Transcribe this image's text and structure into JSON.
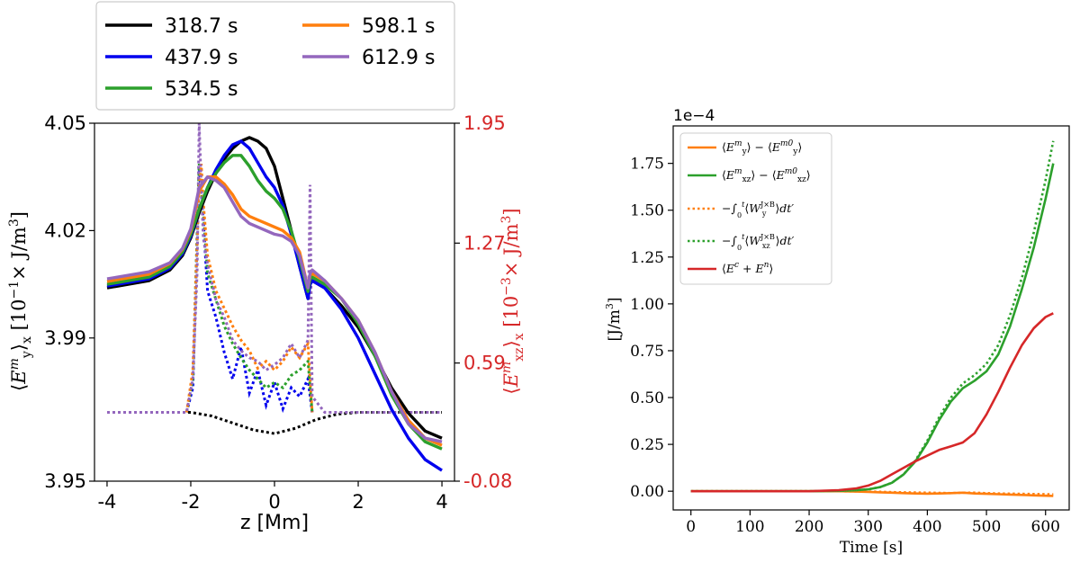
{
  "chart_data": [
    {
      "type": "line",
      "xlabel": "z [Mm]",
      "ylabel": "⟨E_y^m⟩_x [10^-1 × J/m^3]",
      "ylabel_right": "⟨E_xz^m⟩_x [10^-3 × J/m^3]",
      "xlim": [
        -4.3,
        4.3
      ],
      "ylim": [
        3.95,
        4.05
      ],
      "ylim_right": [
        -0.08,
        1.95
      ],
      "xticks": [
        "-4",
        "-2",
        "0",
        "2",
        "4"
      ],
      "yticks": [
        "3.95",
        "3.99",
        "4.02",
        "4.05"
      ],
      "yticks_right": [
        "-0.08",
        "0.59",
        "1.27",
        "1.95"
      ],
      "right_axis_color": "#d62728",
      "legend_position": "above",
      "grid": false,
      "series": [
        {
          "name": "318.7 s",
          "color": "#000000",
          "solid_x": [
            -4,
            -3,
            -2.5,
            -2.2,
            -2,
            -1.8,
            -1.6,
            -1.4,
            -1.2,
            -1.0,
            -0.8,
            -0.6,
            -0.4,
            -0.2,
            0,
            0.2,
            0.4,
            0.6,
            0.8,
            0.85,
            0.9,
            1.2,
            1.6,
            2,
            2.4,
            2.8,
            3.2,
            3.6,
            4
          ],
          "solid_y": [
            4.004,
            4.006,
            4.009,
            4.013,
            4.018,
            4.025,
            4.031,
            4.036,
            4.04,
            4.043,
            4.045,
            4.046,
            4.045,
            4.043,
            4.038,
            4.029,
            4.02,
            4.01,
            4.001,
            4.005,
            4.006,
            4.004,
            3.999,
            3.993,
            3.985,
            3.976,
            3.969,
            3.964,
            3.962
          ],
          "dotted_x": [
            -4,
            -3,
            -2,
            -1.5,
            -1,
            -0.5,
            0,
            0.5,
            1,
            1.5,
            2,
            3,
            4
          ],
          "dotted_y": [
            0.31,
            0.31,
            0.31,
            0.29,
            0.25,
            0.21,
            0.19,
            0.22,
            0.27,
            0.3,
            0.31,
            0.31,
            0.31
          ]
        },
        {
          "name": "437.9 s",
          "color": "#0000ee",
          "solid_x": [
            -4,
            -3,
            -2.5,
            -2.2,
            -2,
            -1.8,
            -1.6,
            -1.4,
            -1.2,
            -1.0,
            -0.8,
            -0.6,
            -0.4,
            -0.2,
            0,
            0.2,
            0.4,
            0.6,
            0.8,
            0.85,
            0.9,
            1.2,
            1.6,
            2,
            2.4,
            2.8,
            3.2,
            3.6,
            4
          ],
          "solid_y": [
            4.0045,
            4.0065,
            4.0095,
            4.0135,
            4.0185,
            4.026,
            4.032,
            4.037,
            4.041,
            4.044,
            4.045,
            4.043,
            4.039,
            4.035,
            4.032,
            4.027,
            4.019,
            4.01,
            4.001,
            4.005,
            4.006,
            4.004,
            3.998,
            3.99,
            3.98,
            3.97,
            3.962,
            3.956,
            3.953
          ],
          "dotted_x": [
            -2.1,
            -1.95,
            -1.8,
            -1.7,
            -1.6,
            -1.4,
            -1.2,
            -1.0,
            -0.8,
            -0.6,
            -0.4,
            -0.2,
            0,
            0.2,
            0.4,
            0.6,
            0.8,
            0.9
          ],
          "dotted_y": [
            0.31,
            0.45,
            1.7,
            1.4,
            1.0,
            0.85,
            0.65,
            0.5,
            0.68,
            0.42,
            0.55,
            0.35,
            0.48,
            0.33,
            0.45,
            0.4,
            0.5,
            0.31
          ]
        },
        {
          "name": "534.5 s",
          "color": "#2ca02c",
          "solid_x": [
            -4,
            -3,
            -2.5,
            -2.2,
            -2,
            -1.8,
            -1.6,
            -1.4,
            -1.2,
            -1.0,
            -0.8,
            -0.6,
            -0.4,
            -0.2,
            0,
            0.2,
            0.4,
            0.6,
            0.8,
            0.85,
            0.9,
            1.2,
            1.6,
            2,
            2.4,
            2.8,
            3.2,
            3.6,
            4
          ],
          "solid_y": [
            4.005,
            4.007,
            4.01,
            4.014,
            4.019,
            4.026,
            4.032,
            4.036,
            4.039,
            4.041,
            4.041,
            4.038,
            4.034,
            4.031,
            4.029,
            4.026,
            4.02,
            4.012,
            4.003,
            4.0065,
            4.007,
            4.005,
            4.001,
            3.994,
            3.985,
            3.974,
            3.966,
            3.961,
            3.959
          ],
          "dotted_x": [
            -2.1,
            -1.95,
            -1.8,
            -1.7,
            -1.6,
            -1.4,
            -1.2,
            -1.0,
            -0.8,
            -0.6,
            -0.4,
            -0.2,
            0,
            0.2,
            0.4,
            0.6,
            0.8,
            0.9
          ],
          "dotted_y": [
            0.31,
            0.5,
            1.72,
            1.45,
            1.1,
            0.95,
            0.8,
            0.7,
            0.62,
            0.55,
            0.5,
            0.45,
            0.48,
            0.45,
            0.52,
            0.55,
            0.6,
            0.31
          ]
        },
        {
          "name": "598.1 s",
          "color": "#ff7f0e",
          "solid_x": [
            -4,
            -3,
            -2.5,
            -2.2,
            -2,
            -1.8,
            -1.6,
            -1.4,
            -1.2,
            -1.0,
            -0.8,
            -0.6,
            -0.4,
            -0.2,
            0,
            0.2,
            0.4,
            0.6,
            0.8,
            0.85,
            0.9,
            1.2,
            1.6,
            2,
            2.4,
            2.8,
            3.2,
            3.6,
            4
          ],
          "solid_y": [
            4.0058,
            4.0078,
            4.0108,
            4.0148,
            4.02,
            4.031,
            4.035,
            4.035,
            4.033,
            4.03,
            4.026,
            4.024,
            4.023,
            4.022,
            4.021,
            4.02,
            4.018,
            4.014,
            4.004,
            4.0075,
            4.008,
            4.006,
            4.001,
            3.995,
            3.986,
            3.975,
            3.967,
            3.962,
            3.96
          ],
          "dotted_x": [
            -2.1,
            -1.95,
            -1.8,
            -1.75,
            -1.7,
            -1.6,
            -1.4,
            -1.2,
            -1.0,
            -0.8,
            -0.6,
            -0.4,
            -0.2,
            0,
            0.2,
            0.4,
            0.6,
            0.8,
            0.9
          ],
          "dotted_y": [
            0.31,
            0.55,
            1.6,
            1.72,
            1.5,
            1.2,
            1.0,
            0.9,
            0.8,
            0.72,
            0.66,
            0.56,
            0.6,
            0.55,
            0.6,
            0.68,
            0.62,
            0.7,
            0.31
          ]
        },
        {
          "name": "612.9 s",
          "color": "#9467bd",
          "solid_x": [
            -4,
            -3,
            -2.5,
            -2.2,
            -2,
            -1.8,
            -1.6,
            -1.4,
            -1.2,
            -1.0,
            -0.8,
            -0.6,
            -0.4,
            -0.2,
            0,
            0.2,
            0.4,
            0.6,
            0.8,
            0.85,
            0.9,
            1.2,
            1.6,
            2,
            2.4,
            2.8,
            3.2,
            3.6,
            4
          ],
          "solid_y": [
            4.0065,
            4.0085,
            4.011,
            4.015,
            4.0205,
            4.032,
            4.035,
            4.034,
            4.032,
            4.028,
            4.024,
            4.022,
            4.021,
            4.02,
            4.019,
            4.0185,
            4.017,
            4.013,
            4.004,
            4.008,
            4.009,
            4.006,
            4.001,
            3.995,
            3.986,
            3.975,
            3.966,
            3.962,
            3.961
          ],
          "dotted_x": [
            -4,
            -3,
            -2.3,
            -2.1,
            -1.95,
            -1.85,
            -1.8,
            -1.75,
            -1.7,
            -1.6,
            -1.4,
            -1.2,
            -1.0,
            -0.8,
            -0.6,
            -0.4,
            -0.2,
            0,
            0.2,
            0.4,
            0.6,
            0.8,
            0.85,
            0.9,
            1.2,
            2,
            3,
            4
          ],
          "dotted_y": [
            0.31,
            0.31,
            0.31,
            0.31,
            0.5,
            1.1,
            1.95,
            1.6,
            1.3,
            1.15,
            0.95,
            0.85,
            0.72,
            0.66,
            0.62,
            0.6,
            0.55,
            0.58,
            0.62,
            0.7,
            0.62,
            0.72,
            1.6,
            0.4,
            0.31,
            0.31,
            0.31,
            0.31
          ]
        }
      ]
    },
    {
      "type": "line",
      "xlabel": "Time [s]",
      "ylabel": "[J/m^3]",
      "y_multiplier": "1e−4",
      "xlim": [
        -30,
        640
      ],
      "ylim": [
        -0.1,
        1.95
      ],
      "xticks": [
        "0",
        "100",
        "200",
        "300",
        "400",
        "500",
        "600"
      ],
      "yticks": [
        "0.00",
        "0.25",
        "0.50",
        "0.75",
        "1.00",
        "1.25",
        "1.50",
        "1.75"
      ],
      "legend_position": "upper left",
      "grid": false,
      "x": [
        0,
        100,
        200,
        250,
        280,
        300,
        320,
        340,
        360,
        380,
        400,
        420,
        440,
        460,
        480,
        500,
        520,
        540,
        560,
        580,
        600,
        613
      ],
      "series": [
        {
          "name": "⟨E_y^m⟩ − ⟨E_y^m0⟩",
          "color": "#ff7f0e",
          "style": "solid",
          "values": [
            0,
            0,
            0,
            0,
            -0.002,
            -0.004,
            -0.006,
            -0.008,
            -0.01,
            -0.012,
            -0.013,
            -0.012,
            -0.01,
            -0.008,
            -0.012,
            -0.014,
            -0.016,
            -0.018,
            -0.02,
            -0.022,
            -0.024,
            -0.025
          ]
        },
        {
          "name": "⟨E_xz^m⟩ − ⟨E_xz^m0⟩",
          "color": "#2ca02c",
          "style": "solid",
          "values": [
            0,
            0,
            0,
            0.002,
            0.005,
            0.01,
            0.022,
            0.045,
            0.09,
            0.16,
            0.26,
            0.38,
            0.48,
            0.55,
            0.59,
            0.64,
            0.73,
            0.88,
            1.08,
            1.3,
            1.56,
            1.75
          ]
        },
        {
          "name": "−∫_0^t ⟨W_y^{J×B}⟩ dt′",
          "color": "#ff7f0e",
          "style": "dotted",
          "values": [
            0,
            0,
            0,
            0,
            -0.001,
            -0.002,
            -0.003,
            -0.005,
            -0.006,
            -0.007,
            -0.008,
            -0.009,
            -0.01,
            -0.008,
            -0.008,
            -0.01,
            -0.012,
            -0.013,
            -0.014,
            -0.015,
            -0.016,
            -0.017
          ]
        },
        {
          "name": "−∫_0^t ⟨W_xz^{J×B}⟩ dt′",
          "color": "#2ca02c",
          "style": "dotted",
          "values": [
            0,
            0,
            0,
            0.002,
            0.005,
            0.01,
            0.022,
            0.045,
            0.09,
            0.165,
            0.27,
            0.395,
            0.5,
            0.575,
            0.62,
            0.68,
            0.78,
            0.94,
            1.14,
            1.38,
            1.66,
            1.87
          ]
        },
        {
          "name": "⟨E^c + E^n⟩",
          "color": "#d62728",
          "style": "solid",
          "values": [
            0,
            0,
            0,
            0.005,
            0.015,
            0.03,
            0.055,
            0.09,
            0.125,
            0.16,
            0.19,
            0.22,
            0.24,
            0.26,
            0.31,
            0.41,
            0.53,
            0.66,
            0.78,
            0.87,
            0.93,
            0.95
          ]
        }
      ]
    }
  ]
}
